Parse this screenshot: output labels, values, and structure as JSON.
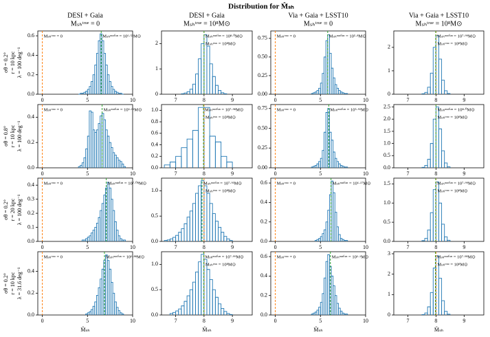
{
  "title": "Distribution for M̂ₛₕ",
  "xlabel": "M̂ₛₕ",
  "hist_color": "#1f77b4",
  "true_color": "#ff7f0e",
  "median_color": "#2ca02c",
  "column_titles": [
    [
      "DESI + Gaia",
      "Mₛₕᵗʳᵘᵉ = 0"
    ],
    [
      "DESI + Gaia",
      "Mₛₕᵗʳᵘᵉ = 10⁸M⊙"
    ],
    [
      "Via + Gaia + LSST10",
      "Mₛₕᵗʳᵘᵉ = 0"
    ],
    [
      "Via + Gaia + LSST10",
      "Mₛₕᵗʳᵘᵉ = 10⁸M⊙"
    ]
  ],
  "row_labels": [
    [
      "σθ = 0.2°",
      "r = 10 kpc",
      "λ = 100 deg⁻¹"
    ],
    [
      "σθ = 0.8°",
      "r = 10 kpc",
      "λ = 100 deg⁻¹"
    ],
    [
      "σθ = 0.2°",
      "r = 20 kpc",
      "λ = 100 deg⁻¹"
    ],
    [
      "σθ = 0.2°",
      "r = 10 kpc",
      "λ = 31.6 deg⁻¹"
    ]
  ],
  "chart_data": [
    {
      "type": "histogram",
      "xlim": [
        -0.5,
        10
      ],
      "xticks": [
        0,
        5,
        10
      ],
      "ylim": [
        0,
        0.65
      ],
      "yticks": [
        {
          "value": 0,
          "label": "0.0"
        },
        0.2,
        0.4,
        0.6
      ],
      "bins": [
        4,
        4.2,
        4.4,
        4.6,
        4.8,
        5,
        5.2,
        5.4,
        5.6,
        5.8,
        6,
        6.2,
        6.4,
        6.6,
        6.8,
        7,
        7.2,
        7.4,
        7.6,
        7.8,
        8,
        8.2,
        8.4,
        8.6,
        8.8,
        9
      ],
      "counts": [
        0,
        0.01,
        0.01,
        0.02,
        0.03,
        0.05,
        0.08,
        0.13,
        0.2,
        0.3,
        0.42,
        0.55,
        0.62,
        0.55,
        0.42,
        0.3,
        0.2,
        0.13,
        0.08,
        0.05,
        0.03,
        0.02,
        0.01,
        0.01,
        0
      ],
      "true_value": 0,
      "true_label": "Mₛₕᵗʳᵘᵉ = 0",
      "median": 6.52,
      "median_label": "Mₛₕᵐᵉᵈⁱᵃⁿ = 10⁶·⁵²M⊙"
    },
    {
      "type": "histogram",
      "xlim": [
        6.5,
        9.7
      ],
      "xticks": [
        7,
        8,
        9
      ],
      "ylim": [
        0,
        2.5
      ],
      "yticks": [
        0,
        1,
        2
      ],
      "bins": [
        7.2,
        7.3,
        7.4,
        7.5,
        7.6,
        7.7,
        7.8,
        7.9,
        8,
        8.1,
        8.2,
        8.3,
        8.4,
        8.5,
        8.6,
        8.7,
        8.8
      ],
      "counts": [
        0.02,
        0.05,
        0.1,
        0.2,
        0.4,
        0.8,
        1.4,
        2.0,
        2.35,
        1.9,
        1.2,
        0.7,
        0.35,
        0.15,
        0.06,
        0.02
      ],
      "true_value": 8,
      "true_label": "Mₛₕᵗʳᵘᵉ = 10⁸M⊙",
      "median": 8.0,
      "median_label": "Mₛₕᵐᵉᵈⁱᵃⁿ = 10⁸·⁰M⊙"
    },
    {
      "type": "histogram",
      "xlim": [
        -0.5,
        10
      ],
      "xticks": [
        0,
        5,
        10
      ],
      "ylim": [
        0,
        0.85
      ],
      "yticks": [
        {
          "value": 0,
          "label": "0.00"
        },
        0.25,
        {
          "value": 0.5,
          "label": "0.50"
        },
        0.75
      ],
      "bins": [
        4,
        4.2,
        4.4,
        4.6,
        4.8,
        5,
        5.2,
        5.4,
        5.6,
        5.8,
        6,
        6.2,
        6.4,
        6.6,
        6.8,
        7,
        7.2,
        7.4,
        7.6,
        7.8,
        8
      ],
      "counts": [
        0.01,
        0.02,
        0.03,
        0.05,
        0.08,
        0.15,
        0.28,
        0.5,
        0.72,
        0.8,
        0.55,
        0.35,
        0.22,
        0.13,
        0.08,
        0.05,
        0.03,
        0.02,
        0.01,
        0.01
      ],
      "true_value": 0,
      "true_label": "Mₛₕᵗʳᵘᵉ = 0",
      "median": 5.8,
      "median_label": "Mₛₕᵐᵉᵈⁱᵃⁿ = 10⁵·⁸M⊙"
    },
    {
      "type": "histogram",
      "xlim": [
        6.5,
        9.7
      ],
      "xticks": [
        7,
        8,
        9
      ],
      "ylim": [
        0,
        2.7
      ],
      "yticks": [
        0,
        1,
        2
      ],
      "bins": [
        7.5,
        7.6,
        7.7,
        7.8,
        7.9,
        8,
        8.1,
        8.2,
        8.3,
        8.4,
        8.5
      ],
      "counts": [
        0.02,
        0.08,
        0.3,
        0.9,
        2.0,
        2.5,
        1.5,
        0.6,
        0.15,
        0.03
      ],
      "true_value": 8,
      "true_label": "Mₛₕᵗʳᵘᵉ = 10⁸M⊙",
      "median": 7.99,
      "median_label": "Mₛₕᵐᵉᵈⁱᵃⁿ = 10⁷·⁹⁹M⊙"
    },
    {
      "type": "histogram",
      "xlim": [
        -0.5,
        10
      ],
      "xticks": [
        0,
        5,
        10
      ],
      "ylim": [
        0,
        0.5
      ],
      "yticks": [
        {
          "value": 0,
          "label": "0.0"
        },
        0.2,
        0.4
      ],
      "bins": [
        4,
        4.2,
        4.4,
        4.6,
        4.8,
        5,
        5.2,
        5.4,
        5.6,
        5.8,
        6,
        6.2,
        6.4,
        6.6,
        6.8,
        7,
        7.2,
        7.4,
        7.6,
        7.8,
        8,
        8.2,
        8.4,
        8.6,
        8.8,
        9,
        9.2
      ],
      "counts": [
        0.01,
        0.02,
        0.04,
        0.08,
        0.15,
        0.25,
        0.45,
        0.44,
        0.3,
        0.28,
        0.3,
        0.35,
        0.41,
        0.43,
        0.38,
        0.3,
        0.25,
        0.2,
        0.16,
        0.12,
        0.1,
        0.08,
        0.06,
        0.05,
        0.03,
        0.01
      ],
      "true_value": 0,
      "true_label": "Mₛₕᵗʳᵘᵉ = 0",
      "median": 6.62,
      "median_label": "Mₛₕᵐᵉᵈⁱᵃⁿ = 10⁶·⁶²M⊙"
    },
    {
      "type": "histogram",
      "xlim": [
        6.5,
        9.7
      ],
      "xticks": [
        7,
        8,
        9
      ],
      "ylim": [
        0,
        1.1
      ],
      "yticks": [
        {
          "value": 0,
          "label": "0.0"
        },
        0.2,
        0.4,
        0.6,
        0.8,
        {
          "value": 1,
          "label": "1.0"
        }
      ],
      "bins": [
        6.6,
        6.8,
        7,
        7.2,
        7.4,
        7.6,
        7.8,
        8,
        8.2,
        8.4,
        8.6,
        8.8,
        9
      ],
      "counts": [
        0.05,
        0.1,
        0.2,
        0.35,
        0.5,
        0.65,
        1.05,
        1.05,
        0.55,
        0.45,
        0.2,
        0.1
      ],
      "true_value": 8,
      "true_label": "Mₛₕᵗʳᵘᵉ = 10⁸M⊙",
      "median": 7.98,
      "median_label": "Mₛₕᵐᵉᵈⁱᵃⁿ = 10⁷·⁹⁸M⊙"
    },
    {
      "type": "histogram",
      "xlim": [
        -0.5,
        10
      ],
      "xticks": [
        0,
        5,
        10
      ],
      "ylim": [
        0,
        0.8
      ],
      "yticks": [
        {
          "value": 0,
          "label": "0.00"
        },
        0.25,
        {
          "value": 0.5,
          "label": "0.50"
        },
        0.75
      ],
      "bins": [
        4,
        4.2,
        4.4,
        4.6,
        4.8,
        5,
        5.2,
        5.4,
        5.6,
        5.8,
        6,
        6.2,
        6.4,
        6.6,
        6.8,
        7,
        7.2,
        7.4,
        7.6,
        7.8,
        8
      ],
      "counts": [
        0.01,
        0.02,
        0.03,
        0.05,
        0.08,
        0.12,
        0.22,
        0.45,
        0.7,
        0.75,
        0.45,
        0.35,
        0.2,
        0.12,
        0.08,
        0.05,
        0.03,
        0.02,
        0.01,
        0.01
      ],
      "true_value": 0,
      "true_label": "Mₛₕᵗʳᵘᵉ = 0",
      "median": 5.92,
      "median_label": "Mₛₕᵐᵉᵈⁱᵃⁿ = 10⁵·⁹²M⊙"
    },
    {
      "type": "histogram",
      "xlim": [
        6.5,
        9.7
      ],
      "xticks": [
        7,
        8,
        9
      ],
      "ylim": [
        0,
        2.6
      ],
      "yticks": [
        {
          "value": 0,
          "label": "0.0"
        },
        0.5,
        {
          "value": 1,
          "label": "1.0"
        },
        1.5,
        {
          "value": 2,
          "label": "2.0"
        },
        2.5
      ],
      "bins": [
        7.5,
        7.6,
        7.7,
        7.8,
        7.9,
        8,
        8.1,
        8.2,
        8.3,
        8.4,
        8.5
      ],
      "counts": [
        0.02,
        0.1,
        0.35,
        1.0,
        2.0,
        2.5,
        1.6,
        0.7,
        0.2,
        0.04
      ],
      "true_value": 8,
      "true_label": "Mₛₕᵗʳᵘᵉ = 10⁸M⊙",
      "median": 8.0,
      "median_label": "Mₛₕᵐᵉᵈⁱᵃⁿ = 10⁸·⁰M⊙"
    },
    {
      "type": "histogram",
      "xlim": [
        -0.5,
        10
      ],
      "xticks": [
        0,
        5,
        10
      ],
      "ylim": [
        0,
        0.45
      ],
      "yticks": [
        {
          "value": 0,
          "label": "0.0"
        },
        0.1,
        0.2,
        0.3,
        0.4
      ],
      "bins": [
        4.4,
        4.6,
        4.8,
        5,
        5.2,
        5.4,
        5.6,
        5.8,
        6,
        6.2,
        6.4,
        6.6,
        6.8,
        7,
        7.2,
        7.4,
        7.6,
        7.8,
        8,
        8.2,
        8.4,
        8.6,
        8.8,
        9,
        9.2
      ],
      "counts": [
        0.01,
        0.01,
        0.02,
        0.03,
        0.04,
        0.06,
        0.08,
        0.1,
        0.13,
        0.17,
        0.22,
        0.27,
        0.33,
        0.38,
        0.42,
        0.38,
        0.3,
        0.22,
        0.14,
        0.08,
        0.04,
        0.02,
        0.01,
        0.01
      ],
      "true_value": 0,
      "true_label": "Mₛₕᵗʳᵘᵉ = 0",
      "median": 7.08,
      "median_label": "Mₛₕᵐᵉᵈⁱᵃⁿ = 10⁷·⁰⁸M⊙"
    },
    {
      "type": "histogram",
      "xlim": [
        6.5,
        9.7
      ],
      "xticks": [
        7,
        8,
        9
      ],
      "ylim": [
        0,
        1.25
      ],
      "yticks": [
        {
          "value": 0,
          "label": "0.0"
        },
        0.5,
        {
          "value": 1,
          "label": "1.0"
        }
      ],
      "bins": [
        6.6,
        6.7,
        6.8,
        6.9,
        7,
        7.1,
        7.2,
        7.3,
        7.4,
        7.5,
        7.6,
        7.7,
        7.8,
        7.9,
        8,
        8.1,
        8.2,
        8.3,
        8.4,
        8.5,
        8.6,
        8.7,
        8.8,
        8.9,
        9
      ],
      "counts": [
        0.02,
        0.03,
        0.05,
        0.08,
        0.12,
        0.18,
        0.25,
        0.35,
        0.48,
        0.6,
        0.75,
        0.95,
        1.1,
        1.2,
        1.1,
        0.95,
        0.75,
        0.55,
        0.4,
        0.28,
        0.18,
        0.1,
        0.05,
        0.02
      ],
      "true_value": 8,
      "true_label": "Mₛₕᵗʳᵘᵉ = 10⁸M⊙",
      "median": 7.93,
      "median_label": "Mₛₕᵐᵉᵈⁱᵃⁿ = 10⁷·⁹³M⊙"
    },
    {
      "type": "histogram",
      "xlim": [
        -0.5,
        10
      ],
      "xticks": [
        0,
        5,
        10
      ],
      "ylim": [
        0,
        0.65
      ],
      "yticks": [
        {
          "value": 0,
          "label": "0.0"
        },
        0.2,
        0.4,
        0.6
      ],
      "bins": [
        4.4,
        4.6,
        4.8,
        5,
        5.2,
        5.4,
        5.6,
        5.8,
        6,
        6.2,
        6.4,
        6.6,
        6.8,
        7,
        7.2,
        7.4,
        7.6,
        7.8,
        8
      ],
      "counts": [
        0.01,
        0.02,
        0.03,
        0.05,
        0.08,
        0.12,
        0.2,
        0.32,
        0.48,
        0.62,
        0.5,
        0.3,
        0.15,
        0.07,
        0.03,
        0.02,
        0.01,
        0.01
      ],
      "true_value": 0,
      "true_label": "Mₛₕᵗʳᵘᵉ = 0",
      "median": 6.17,
      "median_label": "Mₛₕᵐᵉᵈⁱᵃⁿ = 10⁶·¹⁷M⊙"
    },
    {
      "type": "histogram",
      "xlim": [
        6.5,
        9.7
      ],
      "xticks": [
        7,
        8,
        9
      ],
      "ylim": [
        0,
        1.65
      ],
      "yticks": [
        {
          "value": 0,
          "label": "0.0"
        },
        0.5,
        {
          "value": 1,
          "label": "1.0"
        },
        1.5
      ],
      "bins": [
        7.5,
        7.6,
        7.7,
        7.8,
        7.9,
        8,
        8.1,
        8.2,
        8.3,
        8.4,
        8.5
      ],
      "counts": [
        0.02,
        0.08,
        0.3,
        0.75,
        1.35,
        1.55,
        1.0,
        0.45,
        0.12,
        0.03
      ],
      "true_value": 8,
      "true_label": "Mₛₕᵗʳᵘᵉ = 10⁸M⊙",
      "median": 7.99,
      "median_label": "Mₛₕᵐᵉᵈⁱᵃⁿ = 10⁷·⁹⁹M⊙"
    },
    {
      "type": "histogram",
      "xlim": [
        -0.5,
        10
      ],
      "xticks": [
        0,
        5,
        10
      ],
      "ylim": [
        0,
        0.58
      ],
      "yticks": [
        {
          "value": 0,
          "label": "0.0"
        },
        0.2,
        0.4
      ],
      "bins": [
        4.8,
        5,
        5.2,
        5.4,
        5.6,
        5.8,
        6,
        6.2,
        6.4,
        6.6,
        6.8,
        7,
        7.2,
        7.4,
        7.6,
        7.8,
        8,
        8.2,
        8.4,
        8.6,
        8.8,
        9
      ],
      "counts": [
        0.01,
        0.02,
        0.03,
        0.05,
        0.08,
        0.12,
        0.18,
        0.25,
        0.33,
        0.42,
        0.5,
        0.55,
        0.5,
        0.42,
        0.3,
        0.2,
        0.12,
        0.07,
        0.04,
        0.02,
        0.01
      ],
      "true_value": 0,
      "true_label": "Mₛₕᵗʳᵘᵉ = 0",
      "median": 6.88,
      "median_label": "Mₛₕᵐᵉᵈⁱᵃⁿ = 10⁶·⁸⁸M⊙"
    },
    {
      "type": "histogram",
      "xlim": [
        6.5,
        9.7
      ],
      "xticks": [
        7,
        8,
        9
      ],
      "ylim": [
        0,
        1.25
      ],
      "yticks": [
        {
          "value": 0,
          "label": "0.0"
        },
        0.5,
        {
          "value": 1,
          "label": "1.0"
        }
      ],
      "bins": [
        6.8,
        6.9,
        7,
        7.1,
        7.2,
        7.3,
        7.4,
        7.5,
        7.6,
        7.7,
        7.8,
        7.9,
        8,
        8.1,
        8.2,
        8.3,
        8.4,
        8.5,
        8.6,
        8.7,
        8.8,
        8.9,
        9
      ],
      "counts": [
        0.03,
        0.05,
        0.08,
        0.12,
        0.18,
        0.27,
        0.38,
        0.5,
        0.65,
        0.85,
        1.05,
        1.2,
        1.1,
        0.9,
        0.7,
        0.5,
        0.35,
        0.22,
        0.13,
        0.07,
        0.03,
        0.01
      ],
      "true_value": 8,
      "true_label": "Mₛₕᵗʳᵘᵉ = 10⁸M⊙",
      "median": 7.99,
      "median_label": "Mₛₕᵐᵉᵈⁱᵃⁿ = 10⁷·⁹⁹M⊙"
    },
    {
      "type": "histogram",
      "xlim": [
        -0.5,
        10
      ],
      "xticks": [
        0,
        5,
        10
      ],
      "ylim": [
        0,
        0.65
      ],
      "yticks": [
        {
          "value": 0,
          "label": "0.0"
        },
        0.2,
        0.4,
        0.6
      ],
      "bins": [
        4,
        4.2,
        4.4,
        4.6,
        4.8,
        5,
        5.2,
        5.4,
        5.6,
        5.8,
        6,
        6.2,
        6.4,
        6.6,
        6.8,
        7,
        7.2,
        7.4,
        7.6,
        7.8,
        8
      ],
      "counts": [
        0.01,
        0.02,
        0.03,
        0.05,
        0.08,
        0.13,
        0.22,
        0.38,
        0.55,
        0.62,
        0.5,
        0.4,
        0.3,
        0.2,
        0.12,
        0.07,
        0.04,
        0.02,
        0.01,
        0.01
      ],
      "true_value": 0,
      "true_label": "Mₛₕᵗʳᵘᵉ = 0",
      "median": 6.1,
      "median_label": "Mₛₕᵐᵉᵈⁱᵃⁿ = 10⁶·¹M⊙"
    },
    {
      "type": "histogram",
      "xlim": [
        6.5,
        9.7
      ],
      "xticks": [
        7,
        8,
        9
      ],
      "ylim": [
        0,
        3.1
      ],
      "yticks": [
        0,
        1,
        2,
        3
      ],
      "bins": [
        7.5,
        7.6,
        7.7,
        7.8,
        7.9,
        8,
        8.1,
        8.2,
        8.3,
        8.4,
        8.5
      ],
      "counts": [
        0.02,
        0.1,
        0.4,
        1.1,
        2.3,
        2.9,
        1.8,
        0.7,
        0.18,
        0.04
      ],
      "true_value": 8,
      "true_label": "Mₛₕᵗʳᵘᵉ = 10⁸M⊙",
      "median": 7.98,
      "median_label": "Mₛₕᵐᵉᵈⁱᵃⁿ = 10⁷·⁹⁸M⊙"
    }
  ]
}
